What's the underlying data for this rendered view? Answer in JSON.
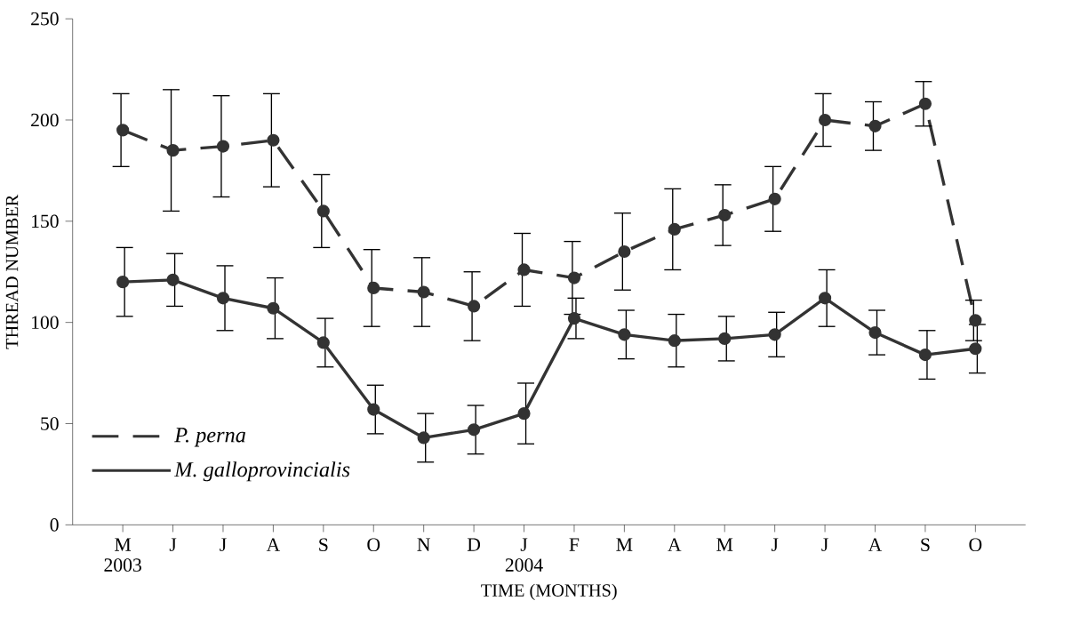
{
  "chart_data": {
    "type": "line",
    "xlabel": "TIME (MONTHS)",
    "ylabel": "THREAD NUMBER",
    "categories": [
      "M 2003",
      "J",
      "J",
      "A",
      "S",
      "O",
      "N",
      "D",
      "J 2004",
      "F",
      "M",
      "A",
      "M",
      "J",
      "J",
      "A",
      "S",
      "O"
    ],
    "series": [
      {
        "name": "P. perna",
        "color": "#333333",
        "line_style": "dashed",
        "values": [
          195,
          185,
          187,
          190,
          155,
          117,
          115,
          108,
          126,
          122,
          135,
          146,
          153,
          161,
          200,
          197,
          208,
          101
        ],
        "errors": [
          18,
          30,
          25,
          23,
          18,
          19,
          17,
          17,
          18,
          18,
          19,
          20,
          15,
          16,
          13,
          12,
          11,
          10
        ]
      },
      {
        "name": "M. galloprovincialis",
        "color": "#333333",
        "line_style": "solid",
        "values": [
          120,
          121,
          112,
          107,
          90,
          57,
          43,
          47,
          55,
          102,
          94,
          91,
          92,
          94,
          112,
          95,
          84,
          87
        ],
        "errors": [
          17,
          13,
          16,
          15,
          12,
          12,
          12,
          12,
          15,
          10,
          12,
          13,
          11,
          11,
          14,
          11,
          12,
          12
        ]
      }
    ],
    "ylim": [
      0,
      250
    ],
    "yticks": [
      0,
      50,
      100,
      150,
      200,
      250
    ],
    "marker": "circle",
    "legend": "bottom left",
    "grid": false
  }
}
